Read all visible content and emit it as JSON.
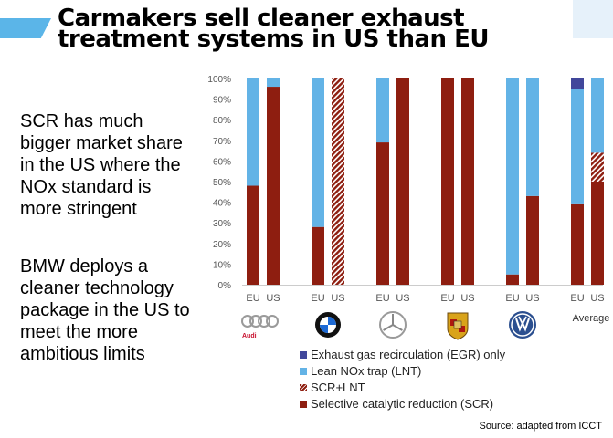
{
  "slide": {
    "title_lines": [
      "Carmakers sell cleaner exhaust",
      "treatment systems in US than EU"
    ],
    "bullet1_lines": [
      "SCR has much",
      "bigger market share",
      "in the US where the",
      "NOx standard is",
      "more stringent"
    ],
    "bullet2_lines": [
      "BMW deploys a",
      "cleaner technology",
      "package in the US to",
      "meet the more",
      "ambitious limits"
    ],
    "source": "Source: adapted from ICCT",
    "brand_text": "Audi"
  },
  "chart_data": {
    "type": "bar",
    "stacked": true,
    "ylim": [
      0,
      100
    ],
    "yticks": [
      "0%",
      "10%",
      "20%",
      "30%",
      "40%",
      "50%",
      "60%",
      "70%",
      "80%",
      "90%",
      "100%"
    ],
    "groups": [
      {
        "brand": "Audi",
        "logo": "audi-logo",
        "label": ""
      },
      {
        "brand": "BMW",
        "logo": "bmw-logo",
        "label": ""
      },
      {
        "brand": "Mercedes",
        "logo": "mercedes-logo",
        "label": ""
      },
      {
        "brand": "Porsche",
        "logo": "porsche-logo",
        "label": ""
      },
      {
        "brand": "Volkswagen",
        "logo": "volkswagen-logo",
        "label": ""
      },
      {
        "brand": "Average",
        "logo": "",
        "label": "Average"
      }
    ],
    "region_labels": [
      "EU",
      "US"
    ],
    "series": [
      {
        "name": "Exhaust gas recirculation (EGR) only",
        "color": "#41479b",
        "values": [
          0,
          0,
          0,
          0,
          0,
          0,
          0,
          0,
          0,
          0,
          5,
          0
        ]
      },
      {
        "name": "Lean NOx trap (LNT)",
        "color": "#63b3e6",
        "values": [
          52,
          4,
          72,
          0,
          31,
          0,
          0,
          0,
          95,
          57,
          56,
          36
        ]
      },
      {
        "name": "SCR+LNT",
        "color": "#8e1e10",
        "pattern": "hatch",
        "values": [
          0,
          0,
          0,
          100,
          0,
          0,
          0,
          0,
          0,
          0,
          0,
          14
        ]
      },
      {
        "name": "Selective catalytic reduction (SCR)",
        "color": "#8e1e10",
        "values": [
          48,
          96,
          28,
          0,
          69,
          100,
          100,
          100,
          5,
          43,
          39,
          50
        ]
      }
    ],
    "legend_order": [
      0,
      1,
      2,
      3
    ],
    "legend_position": "bottom",
    "grid": false
  }
}
